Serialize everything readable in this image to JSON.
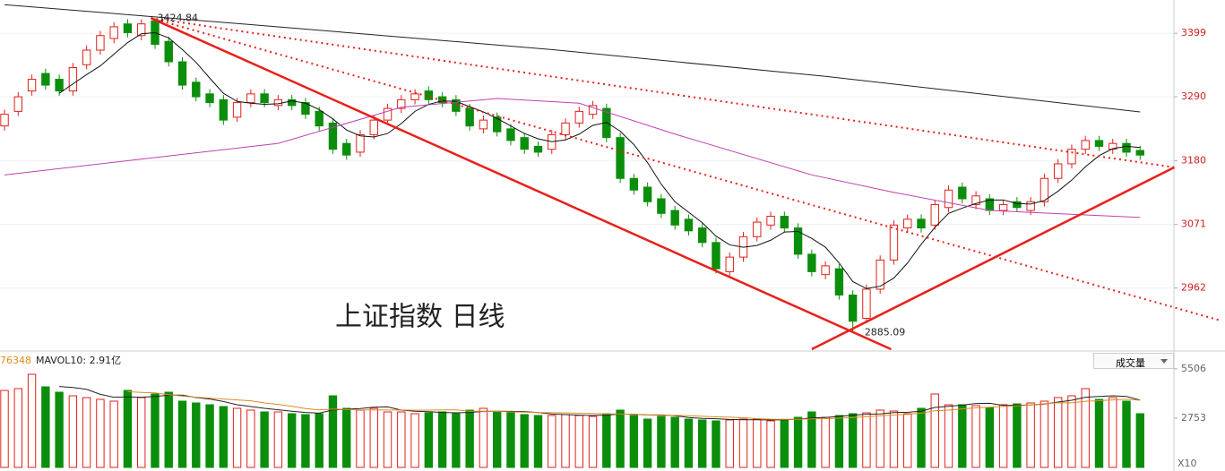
{
  "chart_data": [
    {
      "type": "candlestick",
      "title": "上证指数 日线",
      "up_color": "#e0201a",
      "down_color": "#0b8e0b",
      "ma5_color": "#111111",
      "xlim": [
        -0.33,
        85.47
      ],
      "ylim": [
        2857,
        3456
      ],
      "yticks": [
        3399,
        3290,
        3180,
        3071,
        2962
      ],
      "tick_color": "#d02020",
      "open": [
        3240,
        3265,
        3300,
        3330,
        3320,
        3300,
        3345,
        3370,
        3390,
        3415,
        3395,
        3420,
        3385,
        3350,
        3315,
        3295,
        3285,
        3255,
        3280,
        3295,
        3275,
        3285,
        3280,
        3265,
        3245,
        3210,
        3195,
        3225,
        3250,
        3270,
        3285,
        3300,
        3290,
        3285,
        3270,
        3235,
        3255,
        3235,
        3220,
        3205,
        3200,
        3225,
        3245,
        3260,
        3270,
        3220,
        3150,
        3135,
        3115,
        3095,
        3080,
        3065,
        3040,
        2990,
        3015,
        3050,
        3070,
        3085,
        3065,
        3020,
        2985,
        2995,
        2950,
        2910,
        2960,
        3010,
        3065,
        3080,
        3070,
        3100,
        3135,
        3105,
        3115,
        3095,
        3110,
        3095,
        3110,
        3150,
        3175,
        3200,
        3215,
        3200,
        3210,
        3198
      ],
      "high": [
        3268,
        3298,
        3328,
        3338,
        3328,
        3348,
        3378,
        3403,
        3418,
        3423,
        3423,
        3424.84,
        3393,
        3358,
        3323,
        3303,
        3293,
        3288,
        3303,
        3303,
        3293,
        3293,
        3288,
        3273,
        3253,
        3218,
        3233,
        3258,
        3278,
        3293,
        3303,
        3308,
        3298,
        3293,
        3278,
        3258,
        3263,
        3243,
        3228,
        3213,
        3233,
        3253,
        3273,
        3283,
        3278,
        3228,
        3158,
        3143,
        3123,
        3103,
        3088,
        3073,
        3048,
        3023,
        3058,
        3083,
        3093,
        3093,
        3073,
        3028,
        3008,
        3003,
        2958,
        2968,
        3018,
        3078,
        3088,
        3088,
        3113,
        3138,
        3143,
        3128,
        3123,
        3113,
        3118,
        3118,
        3158,
        3183,
        3208,
        3223,
        3223,
        3218,
        3218,
        3206
      ],
      "low": [
        3232,
        3257,
        3292,
        3302,
        3292,
        3292,
        3337,
        3362,
        3382,
        3392,
        3387,
        3372,
        3342,
        3302,
        3282,
        3272,
        3242,
        3247,
        3272,
        3272,
        3267,
        3267,
        3252,
        3232,
        3192,
        3182,
        3187,
        3217,
        3242,
        3262,
        3277,
        3277,
        3272,
        3257,
        3232,
        3227,
        3222,
        3207,
        3192,
        3187,
        3192,
        3217,
        3237,
        3252,
        3212,
        3142,
        3122,
        3102,
        3082,
        3062,
        3052,
        3032,
        2987,
        2982,
        3007,
        3042,
        3062,
        3057,
        3012,
        2982,
        2977,
        2942,
        2885.09,
        2902,
        2952,
        3002,
        3057,
        3057,
        3062,
        3092,
        3107,
        3097,
        3087,
        3087,
        3092,
        3087,
        3102,
        3142,
        3167,
        3192,
        3197,
        3192,
        3187,
        3182
      ],
      "close": [
        3260,
        3290,
        3320,
        3310,
        3300,
        3340,
        3370,
        3395,
        3410,
        3400,
        3415,
        3380,
        3350,
        3310,
        3290,
        3280,
        3250,
        3280,
        3295,
        3280,
        3285,
        3275,
        3260,
        3240,
        3200,
        3190,
        3225,
        3250,
        3270,
        3285,
        3295,
        3285,
        3280,
        3265,
        3240,
        3250,
        3230,
        3215,
        3200,
        3195,
        3225,
        3245,
        3265,
        3275,
        3220,
        3150,
        3130,
        3110,
        3090,
        3070,
        3060,
        3040,
        2995,
        3015,
        3050,
        3075,
        3085,
        3065,
        3020,
        2990,
        3000,
        2950,
        2905,
        2960,
        3010,
        3070,
        3080,
        3065,
        3105,
        3130,
        3115,
        3120,
        3095,
        3105,
        3100,
        3110,
        3150,
        3175,
        3200,
        3215,
        3205,
        3210,
        3195,
        3190
      ],
      "ma_lines": [
        {
          "color": "#222222",
          "points": [
            [
              0,
              3448
            ],
            [
              20,
              3410
            ],
            [
              40,
              3371
            ],
            [
              60,
              3325
            ],
            [
              83,
              3264
            ]
          ]
        },
        {
          "color": "#c040b0",
          "points": [
            [
              0,
              3156
            ],
            [
              20,
              3210
            ],
            [
              29,
              3272
            ],
            [
              36,
              3287
            ],
            [
              42,
              3279
            ],
            [
              49,
              3226
            ],
            [
              59,
              3156
            ],
            [
              65,
              3126
            ],
            [
              72,
              3095
            ],
            [
              83,
              3083
            ]
          ]
        }
      ],
      "lines": [
        {
          "color": "#e8201a",
          "style": "solid",
          "from": [
            10.7,
            3425
          ],
          "to": [
            64.8,
            2857
          ]
        },
        {
          "color": "#e8201a",
          "style": "solid",
          "from": [
            59,
            2857
          ],
          "to": [
            85.5,
            3169
          ]
        },
        {
          "color": "#e8201a",
          "style": "dotted",
          "from": [
            10.7,
            3425
          ],
          "to": [
            85.5,
            3169
          ]
        },
        {
          "color": "#e8201a",
          "style": "dotted",
          "from": [
            10.7,
            3425
          ],
          "to": [
            88.9,
            2906
          ]
        }
      ],
      "annotations": [
        {
          "text": "3424.84",
          "x": 10.9,
          "y": 3424.84
        },
        {
          "text": "2885.09",
          "x": 62.6,
          "y": 2885.09
        }
      ]
    },
    {
      "type": "bar",
      "label_left": "76348",
      "label_ma": "MAVOL10: 2.91亿",
      "selector": "成交量",
      "unit": "X10",
      "ylim": [
        0,
        6350
      ],
      "yticks": [
        5506,
        2753
      ],
      "tick_color": "#666666",
      "ma_colors": [
        "#222222",
        "#e08a20"
      ],
      "values": [
        4300,
        4400,
        5200,
        4500,
        4200,
        4000,
        3900,
        3800,
        3700,
        4300,
        3900,
        4100,
        4200,
        3700,
        3600,
        3500,
        3400,
        3300,
        3200,
        3100,
        3100,
        3000,
        2950,
        3000,
        4000,
        3300,
        3200,
        3300,
        3100,
        3100,
        3000,
        3050,
        3100,
        3000,
        3200,
        3300,
        3100,
        3050,
        2950,
        2900,
        2900,
        2950,
        2900,
        2850,
        3000,
        3200,
        2900,
        2700,
        2850,
        2800,
        2700,
        2650,
        2600,
        2650,
        2700,
        2700,
        2600,
        2650,
        2800,
        3100,
        2800,
        2900,
        3000,
        3050,
        3200,
        3150,
        3000,
        3300,
        4100,
        3500,
        3500,
        3450,
        3350,
        3500,
        3550,
        3600,
        3700,
        3900,
        4000,
        4400,
        3800,
        3900,
        3700,
        3000
      ]
    }
  ]
}
